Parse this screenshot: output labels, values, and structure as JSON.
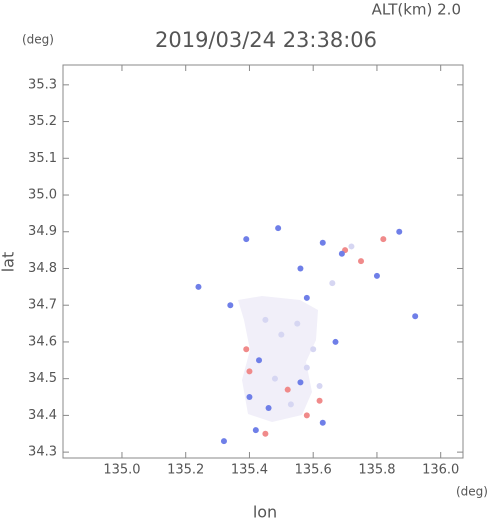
{
  "chart_data": {
    "type": "scatter",
    "title": "2019/03/24 23:38:06",
    "subtitle": "ALT(km) 2.0",
    "x_unit": "(deg)",
    "y_unit": "(deg)",
    "x_label": "lon",
    "y_label": "lat",
    "xlim": [
      134.815,
      136.07
    ],
    "ylim": [
      34.284,
      35.354
    ],
    "xticks": [
      {
        "value": 135,
        "label": "135.0"
      },
      135.2,
      135.4,
      135.6,
      135.8,
      {
        "value": 136,
        "label": "136.0"
      }
    ],
    "yticks": [
      34.3,
      34.4,
      34.5,
      34.6,
      34.7,
      34.8,
      34.9,
      {
        "value": 35,
        "label": "35.0"
      },
      35.1,
      35.2,
      35.3
    ],
    "x": [
      135.7,
      135.39,
      135.52,
      135.62,
      135.58,
      135.4,
      135.82,
      135.75,
      135.45,
      135.49,
      135.87,
      135.39,
      135.24,
      135.92,
      135.32,
      135.63,
      135.56,
      135.58,
      135.34,
      135.43,
      135.46,
      135.63,
      135.42,
      135.67,
      135.69,
      135.8,
      135.56,
      135.4,
      135.5,
      135.55,
      135.6,
      135.48,
      135.53,
      135.58,
      135.62,
      135.45,
      135.66,
      135.72
    ],
    "values": [
      34.85,
      34.58,
      34.47,
      34.44,
      34.4,
      34.52,
      34.88,
      34.82,
      34.35,
      34.91,
      34.9,
      34.88,
      34.75,
      34.67,
      34.33,
      34.87,
      34.8,
      34.72,
      34.7,
      34.55,
      34.42,
      34.38,
      34.36,
      34.6,
      34.84,
      34.78,
      34.49,
      34.45,
      34.62,
      34.65,
      34.58,
      34.5,
      34.43,
      34.53,
      34.48,
      34.66,
      34.76,
      34.86
    ],
    "colors": [
      "#f08a8a",
      "#f08a8a",
      "#f08a8a",
      "#f08a8a",
      "#f08a8a",
      "#f08a8a",
      "#f08a8a",
      "#f08a8a",
      "#f08a8a",
      "#6f7fe8",
      "#6f7fe8",
      "#6f7fe8",
      "#6f7fe8",
      "#6f7fe8",
      "#6f7fe8",
      "#6f7fe8",
      "#6f7fe8",
      "#6f7fe8",
      "#6f7fe8",
      "#6f7fe8",
      "#6f7fe8",
      "#6f7fe8",
      "#6f7fe8",
      "#6f7fe8",
      "#6f7fe8",
      "#6f7fe8",
      "#6f7fe8",
      "#6f7fe8",
      "#d6d6f2",
      "#d6d6f2",
      "#d6d6f2",
      "#d6d6f2",
      "#d6d6f2",
      "#d6d6f2",
      "#d6d6f2",
      "#d6d6f2",
      "#d6d6f2",
      "#d6d6f2"
    ]
  }
}
